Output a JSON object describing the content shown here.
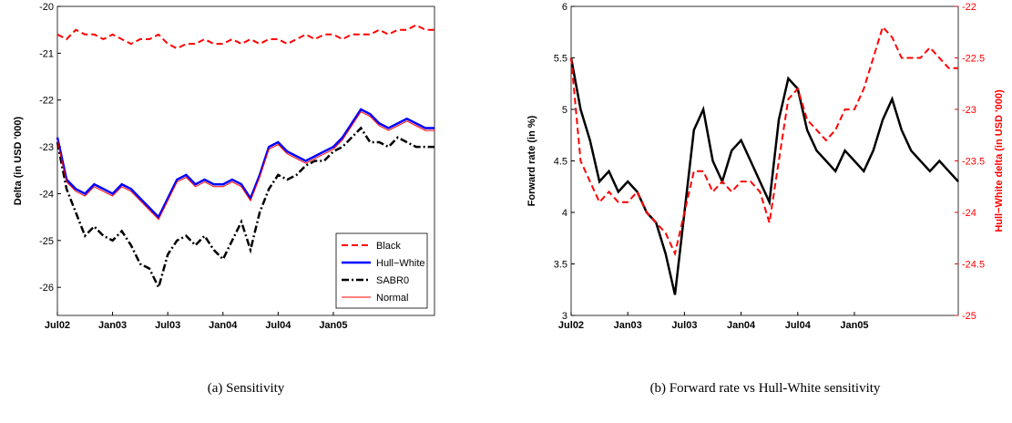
{
  "chart_data": [
    {
      "type": "line",
      "caption": "(a) Sensitivity",
      "ylabel": "Delta (in USD '000)",
      "x": [
        "Jul02",
        "Aug02",
        "Sep02",
        "Oct02",
        "Nov02",
        "Dec02",
        "Jan03",
        "Feb03",
        "Mar03",
        "Apr03",
        "May03",
        "Jun03",
        "Jul03",
        "Aug03",
        "Sep03",
        "Oct03",
        "Nov03",
        "Dec03",
        "Jan04",
        "Feb04",
        "Mar04",
        "Apr04",
        "May04",
        "Jun04",
        "Jul04",
        "Aug04",
        "Sep04",
        "Oct04",
        "Nov04",
        "Dec04",
        "Jan05",
        "Feb05",
        "Mar05",
        "Apr05",
        "May05",
        "Jun05",
        "Jul05",
        "Aug05",
        "Sep05",
        "Oct05",
        "Nov05",
        "Dec05"
      ],
      "xticks": [
        "Jul02",
        "Jan03",
        "Jul03",
        "Jan04",
        "Jul04",
        "Jan05"
      ],
      "ylim": [
        -26.6,
        -20
      ],
      "yticks": [
        -26,
        -25,
        -24,
        -23,
        -22,
        -21,
        -20
      ],
      "legend": "lower right",
      "series": [
        {
          "name": "Black",
          "color": "#ff0000",
          "line_style": "dashed",
          "linewidth": 2,
          "values": [
            -20.6,
            -20.7,
            -20.5,
            -20.6,
            -20.6,
            -20.7,
            -20.6,
            -20.7,
            -20.8,
            -20.7,
            -20.7,
            -20.6,
            -20.8,
            -20.9,
            -20.8,
            -20.8,
            -20.7,
            -20.8,
            -20.8,
            -20.7,
            -20.8,
            -20.7,
            -20.8,
            -20.7,
            -20.7,
            -20.8,
            -20.7,
            -20.6,
            -20.7,
            -20.6,
            -20.6,
            -20.7,
            -20.6,
            -20.6,
            -20.6,
            -20.5,
            -20.6,
            -20.5,
            -20.5,
            -20.4,
            -20.5,
            -20.5
          ]
        },
        {
          "name": "Hull−White",
          "color": "#0000ff",
          "line_style": "solid",
          "linewidth": 2.5,
          "values": [
            -22.8,
            -23.7,
            -23.9,
            -24.0,
            -23.8,
            -23.9,
            -24.0,
            -23.8,
            -23.9,
            -24.1,
            -24.3,
            -24.5,
            -24.1,
            -23.7,
            -23.6,
            -23.8,
            -23.7,
            -23.8,
            -23.8,
            -23.7,
            -23.8,
            -24.1,
            -23.6,
            -23.0,
            -22.9,
            -23.1,
            -23.2,
            -23.3,
            -23.2,
            -23.1,
            -23.0,
            -22.8,
            -22.5,
            -22.2,
            -22.3,
            -22.5,
            -22.6,
            -22.5,
            -22.4,
            -22.5,
            -22.6,
            -22.6
          ]
        },
        {
          "name": "SABR0",
          "color": "#000000",
          "line_style": "dashdot",
          "linewidth": 2.5,
          "values": [
            -22.9,
            -23.9,
            -24.4,
            -24.9,
            -24.7,
            -24.9,
            -25.0,
            -24.8,
            -25.1,
            -25.5,
            -25.6,
            -26.0,
            -25.3,
            -25.0,
            -24.9,
            -25.1,
            -24.9,
            -25.2,
            -25.4,
            -25.0,
            -24.6,
            -25.2,
            -24.4,
            -23.9,
            -23.6,
            -23.7,
            -23.6,
            -23.4,
            -23.3,
            -23.3,
            -23.1,
            -23.0,
            -22.8,
            -22.6,
            -22.9,
            -22.9,
            -23.0,
            -22.8,
            -22.9,
            -23.0,
            -23.0,
            -23.0
          ]
        },
        {
          "name": "Normal",
          "color": "#ff0000",
          "line_style": "solid",
          "linewidth": 1,
          "values": [
            -22.85,
            -23.75,
            -23.95,
            -24.05,
            -23.85,
            -23.95,
            -24.05,
            -23.85,
            -23.95,
            -24.15,
            -24.35,
            -24.55,
            -24.15,
            -23.75,
            -23.65,
            -23.85,
            -23.75,
            -23.85,
            -23.85,
            -23.75,
            -23.85,
            -24.15,
            -23.65,
            -23.05,
            -22.95,
            -23.15,
            -23.25,
            -23.35,
            -23.25,
            -23.15,
            -23.05,
            -22.85,
            -22.55,
            -22.25,
            -22.35,
            -22.55,
            -22.65,
            -22.55,
            -22.45,
            -22.55,
            -22.65,
            -22.65
          ]
        }
      ]
    },
    {
      "type": "line",
      "caption": "(b) Forward rate vs Hull-White sensitivity",
      "ylabel": "Forward rate (in %)",
      "y2label": "Hull−White delta (in USD '000)",
      "y2color": "#ff0000",
      "x": [
        "Jul02",
        "Aug02",
        "Sep02",
        "Oct02",
        "Nov02",
        "Dec02",
        "Jan03",
        "Feb03",
        "Mar03",
        "Apr03",
        "May03",
        "Jun03",
        "Jul03",
        "Aug03",
        "Sep03",
        "Oct03",
        "Nov03",
        "Dec03",
        "Jan04",
        "Feb04",
        "Mar04",
        "Apr04",
        "May04",
        "Jun04",
        "Jul04",
        "Aug04",
        "Sep04",
        "Oct04",
        "Nov04",
        "Dec04",
        "Jan05",
        "Feb05",
        "Mar05",
        "Apr05",
        "May05",
        "Jun05",
        "Jul05",
        "Aug05",
        "Sep05",
        "Oct05",
        "Nov05",
        "Dec05"
      ],
      "xticks": [
        "Jul02",
        "Jan03",
        "Jul03",
        "Jan04",
        "Jul04",
        "Jan05"
      ],
      "ylim": [
        3,
        6
      ],
      "yticks": [
        3,
        3.5,
        4,
        4.5,
        5,
        5.5,
        6
      ],
      "y2lim": [
        -25,
        -22
      ],
      "y2ticks": [
        -25,
        -24.5,
        -24,
        -23.5,
        -23,
        -22.5,
        -22
      ],
      "series": [
        {
          "color": "#000000",
          "line_style": "solid",
          "linewidth": 2.5,
          "values": [
            5.5,
            5.0,
            4.7,
            4.3,
            4.4,
            4.2,
            4.3,
            4.2,
            4.0,
            3.9,
            3.6,
            3.2,
            4.0,
            4.8,
            5.0,
            4.5,
            4.3,
            4.6,
            4.7,
            4.5,
            4.3,
            4.1,
            4.9,
            5.3,
            5.2,
            4.8,
            4.6,
            4.5,
            4.4,
            4.6,
            4.5,
            4.4,
            4.6,
            4.9,
            5.1,
            4.8,
            4.6,
            4.5,
            4.4,
            4.5,
            4.4,
            4.3
          ]
        },
        {
          "color": "#ff0000",
          "line_style": "dashed",
          "linewidth": 2,
          "axis": "y2",
          "values": [
            -22.5,
            -23.5,
            -23.7,
            -23.9,
            -23.8,
            -23.9,
            -23.9,
            -23.8,
            -24.0,
            -24.1,
            -24.2,
            -24.4,
            -24.0,
            -23.6,
            -23.6,
            -23.8,
            -23.7,
            -23.8,
            -23.7,
            -23.7,
            -23.8,
            -24.1,
            -23.5,
            -22.9,
            -22.8,
            -23.1,
            -23.2,
            -23.3,
            -23.2,
            -23.0,
            -23.0,
            -22.8,
            -22.5,
            -22.2,
            -22.3,
            -22.5,
            -22.5,
            -22.5,
            -22.4,
            -22.5,
            -22.6,
            -22.6
          ]
        }
      ]
    }
  ]
}
